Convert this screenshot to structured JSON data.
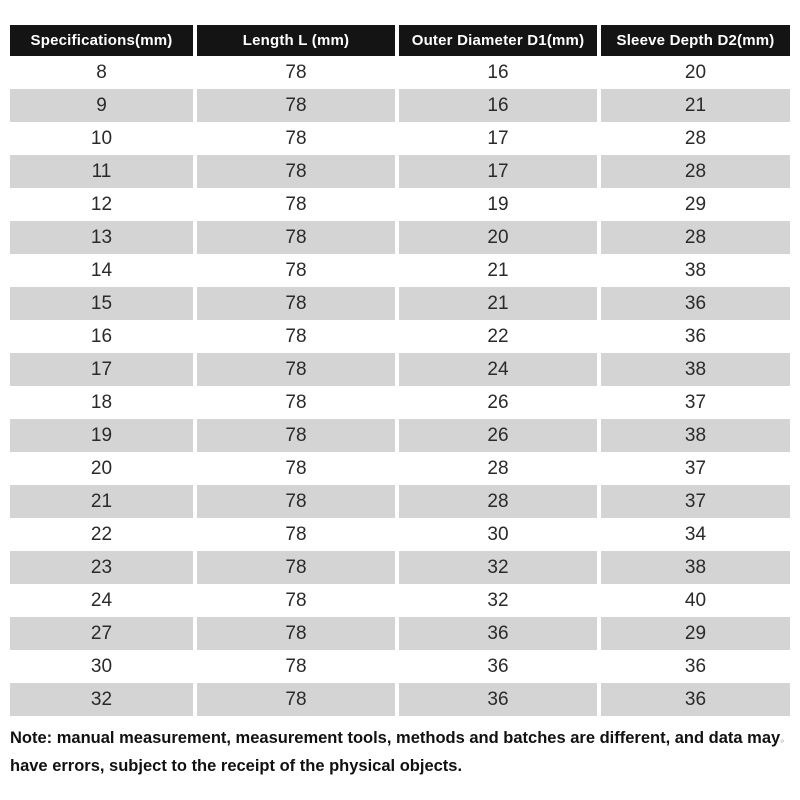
{
  "table": {
    "headers": [
      "Specifications(mm)",
      "Length L (mm)",
      "Outer Diameter D1(mm)",
      "Sleeve Depth D2(mm)"
    ],
    "rows": [
      [
        "8",
        "78",
        "16",
        "20"
      ],
      [
        "9",
        "78",
        "16",
        "21"
      ],
      [
        "10",
        "78",
        "17",
        "28"
      ],
      [
        "11",
        "78",
        "17",
        "28"
      ],
      [
        "12",
        "78",
        "19",
        "29"
      ],
      [
        "13",
        "78",
        "20",
        "28"
      ],
      [
        "14",
        "78",
        "21",
        "38"
      ],
      [
        "15",
        "78",
        "21",
        "36"
      ],
      [
        "16",
        "78",
        "22",
        "36"
      ],
      [
        "17",
        "78",
        "24",
        "38"
      ],
      [
        "18",
        "78",
        "26",
        "37"
      ],
      [
        "19",
        "78",
        "26",
        "38"
      ],
      [
        "20",
        "78",
        "28",
        "37"
      ],
      [
        "21",
        "78",
        "28",
        "37"
      ],
      [
        "22",
        "78",
        "30",
        "34"
      ],
      [
        "23",
        "78",
        "32",
        "38"
      ],
      [
        "24",
        "78",
        "32",
        "40"
      ],
      [
        "27",
        "78",
        "36",
        "29"
      ],
      [
        "30",
        "78",
        "36",
        "36"
      ],
      [
        "32",
        "78",
        "36",
        "36"
      ]
    ]
  },
  "note": {
    "line1": "Note: manual measurement, measurement tools, methods and batches are different, and data may",
    "mark": "。",
    "line2": "have errors, subject to the receipt of the physical objects."
  },
  "colors": {
    "header_bg": "#141414",
    "header_text": "#ffffff",
    "row_alt_bg": "#d4d4d4",
    "body_text": "#2a2a2a"
  }
}
